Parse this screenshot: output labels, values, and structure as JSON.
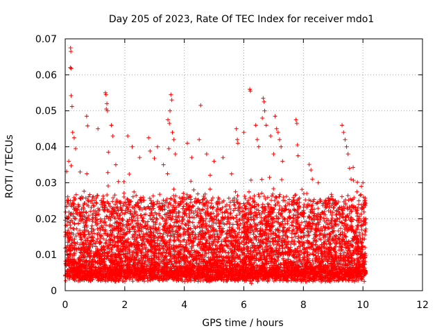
{
  "chart_data": {
    "type": "scatter",
    "title": "Day 205 of 2023, Rate Of TEC Index for receiver mdo1",
    "xlabel": "GPS time / hours",
    "ylabel": "ROTI / TECUs",
    "xlim": [
      0,
      12
    ],
    "ylim": [
      0,
      0.07
    ],
    "xticks": [
      "0",
      "2",
      "4",
      "6",
      "8",
      "10",
      "12"
    ],
    "yticks": [
      "0",
      "0.01",
      "0.02",
      "0.03",
      "0.04",
      "0.05",
      "0.06",
      "0.07"
    ],
    "grid": true,
    "marker": "+",
    "series": [
      {
        "name": "ROTI",
        "color": "#ff0000",
        "points": [
          [
            0.18,
            0.0675
          ],
          [
            0.19,
            0.0665
          ],
          [
            0.17,
            0.062
          ],
          [
            0.2,
            0.0618
          ],
          [
            0.2,
            0.0542
          ],
          [
            0.23,
            0.0512
          ],
          [
            0.25,
            0.044
          ],
          [
            0.3,
            0.0425
          ],
          [
            0.12,
            0.036
          ],
          [
            0.35,
            0.0395
          ],
          [
            0.5,
            0.033
          ],
          [
            0.72,
            0.0485
          ],
          [
            0.75,
            0.0458
          ],
          [
            1.1,
            0.045
          ],
          [
            1.35,
            0.055
          ],
          [
            1.37,
            0.0545
          ],
          [
            1.4,
            0.052
          ],
          [
            1.38,
            0.0505
          ],
          [
            1.42,
            0.05
          ],
          [
            1.55,
            0.046
          ],
          [
            1.6,
            0.043
          ],
          [
            1.45,
            0.0385
          ],
          [
            1.7,
            0.035
          ],
          [
            2.1,
            0.043
          ],
          [
            2.25,
            0.04
          ],
          [
            2.5,
            0.037
          ],
          [
            2.8,
            0.0425
          ],
          [
            2.85,
            0.0388
          ],
          [
            3.1,
            0.04
          ],
          [
            3.3,
            0.035
          ],
          [
            3.45,
            0.0475
          ],
          [
            3.5,
            0.0465
          ],
          [
            3.55,
            0.0545
          ],
          [
            3.58,
            0.053
          ],
          [
            3.52,
            0.05
          ],
          [
            3.6,
            0.044
          ],
          [
            3.65,
            0.042
          ],
          [
            3.48,
            0.0395
          ],
          [
            3.7,
            0.038
          ],
          [
            4.1,
            0.041
          ],
          [
            4.25,
            0.037
          ],
          [
            4.55,
            0.0515
          ],
          [
            4.5,
            0.042
          ],
          [
            4.75,
            0.038
          ],
          [
            5.0,
            0.036
          ],
          [
            5.3,
            0.037
          ],
          [
            5.75,
            0.045
          ],
          [
            5.78,
            0.042
          ],
          [
            5.8,
            0.041
          ],
          [
            6.0,
            0.044
          ],
          [
            6.2,
            0.056
          ],
          [
            6.22,
            0.0555
          ],
          [
            6.4,
            0.046
          ],
          [
            6.45,
            0.042
          ],
          [
            6.5,
            0.04
          ],
          [
            6.65,
            0.0535
          ],
          [
            6.68,
            0.0525
          ],
          [
            6.7,
            0.05
          ],
          [
            6.62,
            0.048
          ],
          [
            6.75,
            0.046
          ],
          [
            6.9,
            0.043
          ],
          [
            7.05,
            0.0485
          ],
          [
            7.1,
            0.045
          ],
          [
            7.15,
            0.044
          ],
          [
            7.2,
            0.042
          ],
          [
            7.25,
            0.04
          ],
          [
            7.0,
            0.038
          ],
          [
            7.3,
            0.036
          ],
          [
            7.75,
            0.0475
          ],
          [
            7.78,
            0.0465
          ],
          [
            7.8,
            0.0405
          ],
          [
            7.82,
            0.0375
          ],
          [
            8.3,
            0.031
          ],
          [
            8.5,
            0.03
          ],
          [
            9.3,
            0.046
          ],
          [
            9.35,
            0.044
          ],
          [
            9.4,
            0.042
          ],
          [
            9.45,
            0.04
          ],
          [
            9.5,
            0.038
          ],
          [
            9.55,
            0.034
          ],
          [
            9.6,
            0.031
          ],
          [
            9.8,
            0.0275
          ],
          [
            9.95,
            0.029
          ],
          [
            10.0,
            0.03
          ],
          [
            10.02,
            0.026
          ],
          [
            6.25,
            0.002
          ],
          [
            6.28,
            0.0035
          ],
          [
            0.6,
            0.003
          ],
          [
            1.5,
            0.0035
          ],
          [
            3.9,
            0.003
          ],
          [
            8.9,
            0.0025
          ]
        ]
      }
    ],
    "bulk_band": {
      "x_range": [
        0,
        10.1
      ],
      "typical_range": [
        0.003,
        0.03
      ],
      "note": "dense cloud of ROTI points approximately 1 per 0.0015 h"
    }
  }
}
